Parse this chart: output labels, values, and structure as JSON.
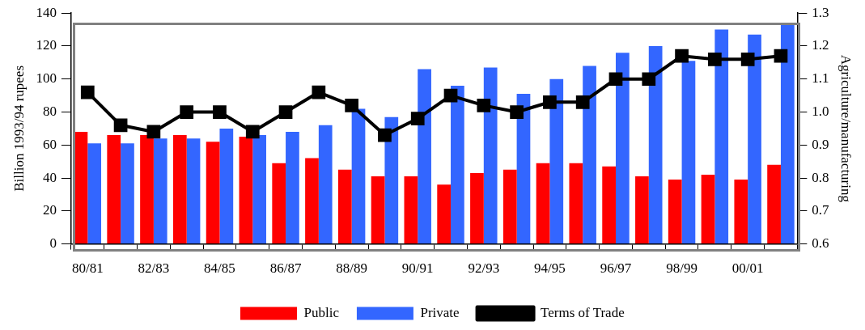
{
  "chart_data": {
    "type": "bar",
    "ylabel": "Billion 1993/94 rupees",
    "y2label": "Agriculture/manufacturing",
    "categories": [
      "80/81",
      null,
      "82/83",
      null,
      "84/85",
      null,
      "86/87",
      null,
      "88/89",
      null,
      "90/91",
      null,
      "92/93",
      null,
      "94/95",
      null,
      "96/97",
      null,
      "98/99",
      null,
      "00/01",
      null
    ],
    "series": [
      {
        "name": "Public",
        "color": "#ff0000",
        "values": [
          68,
          66,
          66,
          66,
          62,
          65,
          49,
          52,
          45,
          41,
          41,
          36,
          43,
          45,
          49,
          49,
          47,
          41,
          39,
          42,
          39,
          48
        ]
      },
      {
        "name": "Private",
        "color": "#3366ff",
        "values": [
          61,
          61,
          64,
          64,
          70,
          66,
          68,
          72,
          82,
          77,
          106,
          96,
          107,
          91,
          100,
          108,
          116,
          120,
          111,
          130,
          127,
          133
        ]
      },
      {
        "name": "Terms of Trade",
        "type": "line",
        "axis": "y2",
        "color": "#000000",
        "marker": "square",
        "values": [
          1.06,
          0.96,
          0.94,
          1.0,
          1.0,
          0.94,
          1.0,
          1.06,
          1.02,
          0.93,
          0.98,
          1.05,
          1.02,
          1.0,
          1.03,
          1.03,
          1.1,
          1.1,
          1.17,
          1.16,
          1.16,
          1.17
        ]
      }
    ],
    "ylim": [
      0,
      140
    ],
    "yticks": [
      0,
      20,
      40,
      60,
      80,
      100,
      120,
      140
    ],
    "y2lim": [
      0.6,
      1.3
    ],
    "y2ticks": [
      {
        "value": 0.6,
        "label": "0.6"
      },
      {
        "value": 0.7,
        "label": "0.7"
      },
      {
        "value": 0.8,
        "label": "0.8"
      },
      {
        "value": 0.9,
        "label": "0.9"
      },
      {
        "value": 1.0,
        "label": "1.0"
      },
      {
        "value": 1.1,
        "label": "1.1"
      },
      {
        "value": 1.2,
        "label": "1.2"
      },
      {
        "value": 1.3,
        "label": "1.3"
      }
    ],
    "grid": false,
    "legend": "bottom"
  }
}
